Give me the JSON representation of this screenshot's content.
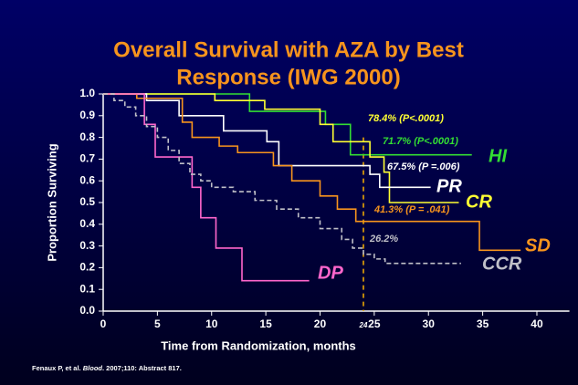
{
  "chart_data": {
    "type": "line",
    "drawstyle": "steps-post",
    "title": [
      "Overall Survival with AZA by Best",
      "Response (IWG 2000)"
    ],
    "xlabel": "Time from Randomization, months",
    "ylabel": "Proportion Surviving",
    "xlim": [
      0,
      43
    ],
    "ylim": [
      0,
      1
    ],
    "xticks": [
      0,
      5,
      10,
      15,
      20,
      25,
      30,
      35,
      40
    ],
    "yticks": [
      {
        "value": 0,
        "label": "0.0"
      },
      0.1,
      0.2,
      0.3,
      0.4,
      0.5,
      0.6,
      0.7,
      0.8,
      0.9,
      {
        "value": 1,
        "label": "1.0"
      }
    ],
    "reference_line": 24,
    "series": [
      {
        "name": "HI",
        "color": "#33dd33",
        "x": [
          0,
          13.5,
          20.5,
          22.8,
          34
        ],
        "values": [
          1.0,
          0.92,
          0.86,
          0.72,
          0.72
        ]
      },
      {
        "name": "CR",
        "color": "#ffff33",
        "x": [
          0,
          10.3,
          14.9,
          20,
          21.2,
          24.6,
          25.9,
          26.4,
          32.8
        ],
        "values": [
          1.0,
          0.97,
          0.93,
          0.86,
          0.78,
          0.71,
          0.64,
          0.5,
          0.5
        ]
      },
      {
        "name": "PR",
        "color": "#ffffff",
        "x": [
          0,
          4,
          7,
          11.1,
          15.1,
          16.2,
          24.6,
          25.5,
          30.2
        ],
        "values": [
          1.0,
          0.97,
          0.9,
          0.83,
          0.78,
          0.67,
          0.63,
          0.57,
          0.57
        ]
      },
      {
        "name": "SD",
        "color": "#f7941d",
        "x": [
          0,
          3.1,
          7.3,
          8.2,
          10.7,
          12.4,
          15.7,
          17.4,
          20,
          21.6,
          23.3,
          34.7,
          38.5
        ],
        "values": [
          1.0,
          0.98,
          0.87,
          0.8,
          0.76,
          0.73,
          0.67,
          0.6,
          0.53,
          0.47,
          0.413,
          0.28,
          0.28
        ]
      },
      {
        "name": "DP",
        "color": "#ff66cc",
        "x": [
          0,
          3.8,
          4.8,
          8.2,
          9,
          10.4,
          12.8,
          19
        ],
        "values": [
          1.0,
          0.86,
          0.71,
          0.57,
          0.43,
          0.29,
          0.14,
          0.14
        ]
      },
      {
        "name": "CCR",
        "color": "#c0c0c8",
        "dashed": true,
        "x": [
          0,
          1,
          2,
          3,
          4,
          5,
          6,
          7,
          8,
          9,
          10,
          12,
          14,
          16,
          18,
          20,
          22,
          23,
          24,
          25,
          26,
          33
        ],
        "values": [
          1.0,
          0.97,
          0.94,
          0.9,
          0.85,
          0.8,
          0.74,
          0.68,
          0.63,
          0.6,
          0.57,
          0.55,
          0.51,
          0.47,
          0.43,
          0.38,
          0.33,
          0.29,
          0.262,
          0.24,
          0.22,
          0.22
        ]
      }
    ],
    "annotations": [
      {
        "text": "78.4% (P<.0001)",
        "color": "#ffff33"
      },
      {
        "text": "71.7% (P<.0001)",
        "color": "#33dd33"
      },
      {
        "text": "67.5% (P =.006)",
        "color": "#ffffff"
      },
      {
        "text": "41.3% (P = .041)",
        "color": "#f7941d"
      },
      {
        "text": "26.2%",
        "color": "#c0c0c8"
      }
    ],
    "footnote": [
      "Fenaux P, et al. ",
      "Blood",
      ". 2007;110: Abstract 817."
    ]
  }
}
